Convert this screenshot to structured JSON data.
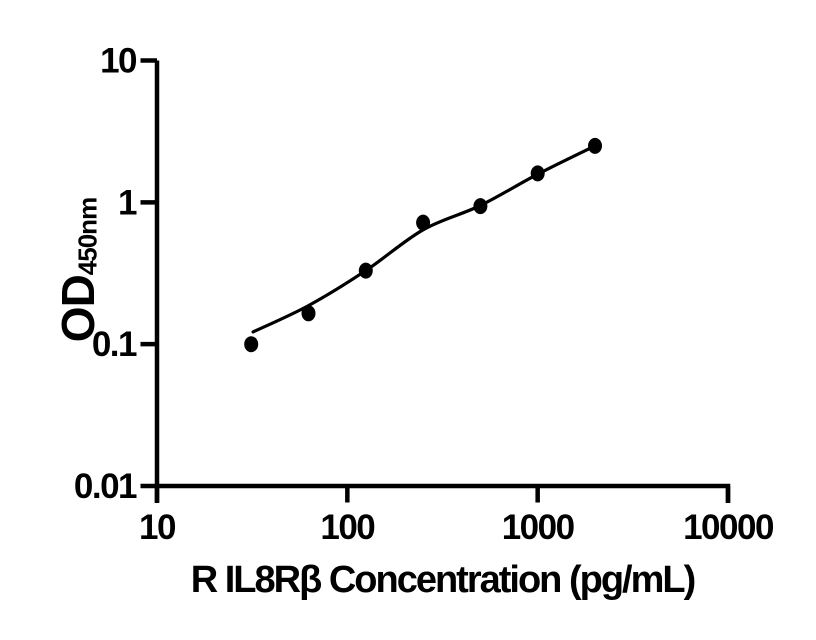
{
  "figure": {
    "background": "#ffffff",
    "ink_color": "#000000"
  },
  "chart_data": {
    "type": "scatter",
    "title": "",
    "xlabel": "R IL8Rβ Concentration (pg/mL)",
    "ylabel": "OD450nm",
    "ylabel_main": "OD",
    "ylabel_subscript": "450nm",
    "x_scale": "log10",
    "y_scale": "log10",
    "xlim": [
      10,
      10000
    ],
    "ylim": [
      0.01,
      10
    ],
    "x_ticks": {
      "values": [
        10,
        100,
        1000,
        10000
      ],
      "labels": [
        "10",
        "100",
        "1000",
        "10000"
      ]
    },
    "y_ticks": {
      "values": [
        10,
        1,
        0.1,
        0.01
      ],
      "labels": [
        "10",
        "1",
        "0.1",
        "0.01"
      ]
    },
    "grid": false,
    "legend": false,
    "marker": {
      "shape": "filled-circle",
      "color": "#000000"
    },
    "series": [
      {
        "name": "standard-points",
        "type": "scatter",
        "color": "#000000",
        "points": [
          {
            "x": 31.25,
            "y": 0.1
          },
          {
            "x": 62.5,
            "y": 0.165
          },
          {
            "x": 125,
            "y": 0.33
          },
          {
            "x": 250,
            "y": 0.72
          },
          {
            "x": 500,
            "y": 0.94
          },
          {
            "x": 1000,
            "y": 1.6
          },
          {
            "x": 2000,
            "y": 2.5
          }
        ]
      },
      {
        "name": "fitted-curve",
        "type": "smooth-line",
        "color": "#000000",
        "points": [
          {
            "x": 32,
            "y": 0.122
          },
          {
            "x": 62.5,
            "y": 0.187
          },
          {
            "x": 125,
            "y": 0.33
          },
          {
            "x": 250,
            "y": 0.64
          },
          {
            "x": 500,
            "y": 0.95
          },
          {
            "x": 1000,
            "y": 1.58
          },
          {
            "x": 2000,
            "y": 2.5
          }
        ]
      }
    ]
  }
}
